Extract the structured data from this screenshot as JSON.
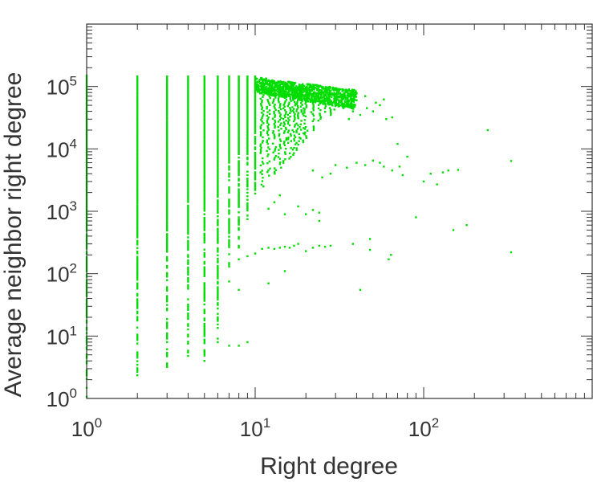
{
  "chart_data": {
    "type": "scatter",
    "title": "",
    "xlabel": "Right degree",
    "ylabel": "Average neighbor right degree",
    "xscale": "log",
    "yscale": "log",
    "xlim": [
      1,
      1000
    ],
    "ylim": [
      1,
      1000000
    ],
    "x_tick_labels": [
      {
        "base": "10",
        "exp": "0"
      },
      {
        "base": "10",
        "exp": "1"
      },
      {
        "base": "10",
        "exp": "2"
      }
    ],
    "y_tick_labels": [
      {
        "base": "10",
        "exp": "0"
      },
      {
        "base": "10",
        "exp": "1"
      },
      {
        "base": "10",
        "exp": "2"
      },
      {
        "base": "10",
        "exp": "3"
      },
      {
        "base": "10",
        "exp": "4"
      },
      {
        "base": "10",
        "exp": "5"
      }
    ],
    "grid": false,
    "legend": "none",
    "marker_color": "#00dd00",
    "axis_color": "#333333",
    "columns": [
      {
        "x": 1,
        "ymin": 1,
        "ymax": 150000
      },
      {
        "x": 2,
        "ymin": 2.2,
        "ymax": 145000
      },
      {
        "x": 3,
        "ymin": 3.2,
        "ymax": 145000
      },
      {
        "x": 4,
        "ymin": 4.5,
        "ymax": 145000
      },
      {
        "x": 5,
        "ymin": 4,
        "ymax": 145000
      },
      {
        "x": 6,
        "ymin": 8,
        "ymax": 145000
      },
      {
        "x": 7,
        "ymin": 130,
        "ymax": 145000
      },
      {
        "x": 8,
        "ymin": 230,
        "ymax": 145000
      },
      {
        "x": 9,
        "ymin": 700,
        "ymax": 145000
      },
      {
        "x": 10,
        "ymin": 1800,
        "ymax": 145000
      },
      {
        "x": 11,
        "ymin": 2500,
        "ymax": 130000
      },
      {
        "x": 12,
        "ymin": 3500,
        "ymax": 125000
      },
      {
        "x": 13,
        "ymin": 4000,
        "ymax": 120000
      },
      {
        "x": 14,
        "ymin": 5000,
        "ymax": 115000
      },
      {
        "x": 15,
        "ymin": 6000,
        "ymax": 110000
      },
      {
        "x": 16,
        "ymin": 7000,
        "ymax": 105000
      },
      {
        "x": 17,
        "ymin": 8000,
        "ymax": 102000
      },
      {
        "x": 18,
        "ymin": 9000,
        "ymax": 100000
      },
      {
        "x": 19,
        "ymin": 12000,
        "ymax": 98000
      },
      {
        "x": 20,
        "ymin": 15000,
        "ymax": 96000
      },
      {
        "x": 22,
        "ymin": 20000,
        "ymax": 92000
      },
      {
        "x": 24,
        "ymin": 25000,
        "ymax": 90000
      },
      {
        "x": 26,
        "ymin": 30000,
        "ymax": 88000
      },
      {
        "x": 28,
        "ymin": 35000,
        "ymax": 85000
      },
      {
        "x": 30,
        "ymin": 40000,
        "ymax": 82000
      },
      {
        "x": 33,
        "ymin": 45000,
        "ymax": 78000
      },
      {
        "x": 36,
        "ymin": 50000,
        "ymax": 72000
      }
    ],
    "scattered_points": [
      {
        "x": 7,
        "y": 7
      },
      {
        "x": 8,
        "y": 7
      },
      {
        "x": 9,
        "y": 8
      },
      {
        "x": 6,
        "y": 160
      },
      {
        "x": 7,
        "y": 140
      },
      {
        "x": 8,
        "y": 170
      },
      {
        "x": 9,
        "y": 190
      },
      {
        "x": 10,
        "y": 210
      },
      {
        "x": 11,
        "y": 250
      },
      {
        "x": 12,
        "y": 260
      },
      {
        "x": 13,
        "y": 250
      },
      {
        "x": 14,
        "y": 260
      },
      {
        "x": 15,
        "y": 270
      },
      {
        "x": 16,
        "y": 260
      },
      {
        "x": 17,
        "y": 280
      },
      {
        "x": 18,
        "y": 300
      },
      {
        "x": 20,
        "y": 230
      },
      {
        "x": 22,
        "y": 260
      },
      {
        "x": 24,
        "y": 280
      },
      {
        "x": 26,
        "y": 270
      },
      {
        "x": 28,
        "y": 280
      },
      {
        "x": 38,
        "y": 300
      },
      {
        "x": 48,
        "y": 360
      },
      {
        "x": 42,
        "y": 55
      },
      {
        "x": 48,
        "y": 240
      },
      {
        "x": 62,
        "y": 170
      },
      {
        "x": 64,
        "y": 200
      },
      {
        "x": 12,
        "y": 70
      },
      {
        "x": 15,
        "y": 110
      },
      {
        "x": 7,
        "y": 75
      },
      {
        "x": 5,
        "y": 70
      },
      {
        "x": 5,
        "y": 45
      },
      {
        "x": 8,
        "y": 55
      },
      {
        "x": 12,
        "y": 1100
      },
      {
        "x": 13,
        "y": 1400
      },
      {
        "x": 14,
        "y": 1800
      },
      {
        "x": 15,
        "y": 900
      },
      {
        "x": 18,
        "y": 1200
      },
      {
        "x": 20,
        "y": 900
      },
      {
        "x": 22,
        "y": 1050
      },
      {
        "x": 24,
        "y": 950
      },
      {
        "x": 24,
        "y": 700
      },
      {
        "x": 8,
        "y": 700
      },
      {
        "x": 8,
        "y": 800
      },
      {
        "x": 9,
        "y": 2500
      },
      {
        "x": 22,
        "y": 4500
      },
      {
        "x": 25,
        "y": 3500
      },
      {
        "x": 28,
        "y": 4000
      },
      {
        "x": 30,
        "y": 5500
      },
      {
        "x": 35,
        "y": 5000
      },
      {
        "x": 40,
        "y": 6000
      },
      {
        "x": 45,
        "y": 5500
      },
      {
        "x": 50,
        "y": 6500
      },
      {
        "x": 55,
        "y": 6000
      },
      {
        "x": 58,
        "y": 5200
      },
      {
        "x": 65,
        "y": 4500
      },
      {
        "x": 72,
        "y": 5200
      },
      {
        "x": 80,
        "y": 7500
      },
      {
        "x": 70,
        "y": 12000
      },
      {
        "x": 75,
        "y": 3800
      },
      {
        "x": 100,
        "y": 3000
      },
      {
        "x": 110,
        "y": 4000
      },
      {
        "x": 130,
        "y": 4200
      },
      {
        "x": 120,
        "y": 2700
      },
      {
        "x": 140,
        "y": 4500
      },
      {
        "x": 160,
        "y": 4600
      },
      {
        "x": 90,
        "y": 800
      },
      {
        "x": 150,
        "y": 500
      },
      {
        "x": 180,
        "y": 600
      },
      {
        "x": 240,
        "y": 20000
      },
      {
        "x": 330,
        "y": 6400
      },
      {
        "x": 330,
        "y": 220
      },
      {
        "x": 40,
        "y": 60000
      },
      {
        "x": 45,
        "y": 70000
      },
      {
        "x": 50,
        "y": 40000
      },
      {
        "x": 55,
        "y": 50000
      },
      {
        "x": 60,
        "y": 30000
      },
      {
        "x": 65,
        "y": 32000
      },
      {
        "x": 36,
        "y": 30000
      },
      {
        "x": 38,
        "y": 40000
      },
      {
        "x": 42,
        "y": 35000
      },
      {
        "x": 46,
        "y": 45000
      },
      {
        "x": 52,
        "y": 55000
      },
      {
        "x": 58,
        "y": 62000
      }
    ]
  }
}
